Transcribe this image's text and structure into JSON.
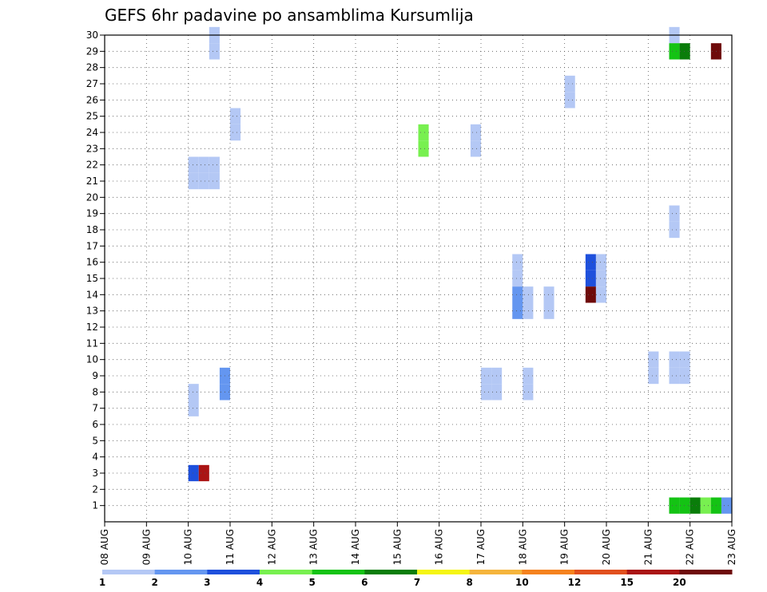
{
  "chart_data": {
    "type": "heatmap",
    "title": "GEFS 6hr padavine po ansamblima Kursumlija",
    "xlabel": "",
    "ylabel": "",
    "x_range": [
      0,
      15
    ],
    "y_range": [
      0,
      30
    ],
    "x_step_days": 0.25,
    "x_tick_labels": [
      "08 AUG",
      "09 AUG",
      "10 AUG",
      "11 AUG",
      "12 AUG",
      "13 AUG",
      "14 AUG",
      "15 AUG",
      "16 AUG",
      "17 AUG",
      "18 AUG",
      "19 AUG",
      "20 AUG",
      "21 AUG",
      "22 AUG",
      "23 AUG"
    ],
    "y_tick_labels": [
      "1",
      "2",
      "3",
      "4",
      "5",
      "6",
      "7",
      "8",
      "9",
      "10",
      "11",
      "12",
      "13",
      "14",
      "15",
      "16",
      "17",
      "18",
      "19",
      "20",
      "21",
      "22",
      "23",
      "24",
      "25",
      "26",
      "27",
      "28",
      "29",
      "30"
    ],
    "grid": true,
    "legend": {
      "placement": "bottom",
      "labels": [
        "1",
        "2",
        "3",
        "4",
        "5",
        "6",
        "7",
        "8",
        "10",
        "12",
        "15",
        "20"
      ],
      "colors": [
        "#b4c8f5",
        "#6496f0",
        "#1e50dc",
        "#78f050",
        "#14c314",
        "#0a7d0a",
        "#f5f514",
        "#f5b43c",
        "#f5821e",
        "#e1501e",
        "#aa1414",
        "#6e0a0a"
      ]
    },
    "cells": [
      {
        "member": 30,
        "t": 2.5,
        "v": 1
      },
      {
        "member": 29,
        "t": 2.5,
        "v": 1
      },
      {
        "member": 30,
        "t": 13.5,
        "v": 1
      },
      {
        "member": 29,
        "t": 13.5,
        "v": 5
      },
      {
        "member": 29,
        "t": 13.75,
        "v": 6
      },
      {
        "member": 29,
        "t": 14.5,
        "v": 20
      },
      {
        "member": 27,
        "t": 11.0,
        "v": 1
      },
      {
        "member": 26,
        "t": 11.0,
        "v": 1
      },
      {
        "member": 25,
        "t": 3.0,
        "v": 1
      },
      {
        "member": 24,
        "t": 3.0,
        "v": 1
      },
      {
        "member": 24,
        "t": 7.5,
        "v": 4
      },
      {
        "member": 23,
        "t": 7.5,
        "v": 4
      },
      {
        "member": 24,
        "t": 8.75,
        "v": 1
      },
      {
        "member": 23,
        "t": 8.75,
        "v": 1
      },
      {
        "member": 22,
        "t": 2.0,
        "v": 1
      },
      {
        "member": 22,
        "t": 2.25,
        "v": 1
      },
      {
        "member": 22,
        "t": 2.5,
        "v": 1
      },
      {
        "member": 21,
        "t": 2.0,
        "v": 1
      },
      {
        "member": 21,
        "t": 2.25,
        "v": 1
      },
      {
        "member": 21,
        "t": 2.5,
        "v": 1
      },
      {
        "member": 19,
        "t": 13.5,
        "v": 1
      },
      {
        "member": 18,
        "t": 13.5,
        "v": 1
      },
      {
        "member": 16,
        "t": 9.75,
        "v": 1
      },
      {
        "member": 15,
        "t": 9.75,
        "v": 1
      },
      {
        "member": 16,
        "t": 11.5,
        "v": 3
      },
      {
        "member": 15,
        "t": 11.5,
        "v": 3
      },
      {
        "member": 16,
        "t": 11.75,
        "v": 1
      },
      {
        "member": 15,
        "t": 11.75,
        "v": 1
      },
      {
        "member": 14,
        "t": 11.5,
        "v": 20
      },
      {
        "member": 14,
        "t": 11.75,
        "v": 1
      },
      {
        "member": 13,
        "t": 9.75,
        "v": 2
      },
      {
        "member": 13,
        "t": 10.0,
        "v": 1
      },
      {
        "member": 14,
        "t": 9.75,
        "v": 2
      },
      {
        "member": 14,
        "t": 10.0,
        "v": 1
      },
      {
        "member": 13,
        "t": 10.5,
        "v": 1
      },
      {
        "member": 14,
        "t": 10.5,
        "v": 1
      },
      {
        "member": 9,
        "t": 13.0,
        "v": 1
      },
      {
        "member": 10,
        "t": 13.0,
        "v": 1
      },
      {
        "member": 9,
        "t": 13.5,
        "v": 1
      },
      {
        "member": 9,
        "t": 13.75,
        "v": 1
      },
      {
        "member": 10,
        "t": 13.5,
        "v": 1
      },
      {
        "member": 10,
        "t": 13.75,
        "v": 1
      },
      {
        "member": 8,
        "t": 2.75,
        "v": 2
      },
      {
        "member": 9,
        "t": 2.75,
        "v": 2
      },
      {
        "member": 8,
        "t": 9.0,
        "v": 1
      },
      {
        "member": 8,
        "t": 9.25,
        "v": 1
      },
      {
        "member": 9,
        "t": 9.0,
        "v": 1
      },
      {
        "member": 9,
        "t": 9.25,
        "v": 1
      },
      {
        "member": 8,
        "t": 10.0,
        "v": 1
      },
      {
        "member": 9,
        "t": 10.0,
        "v": 1
      },
      {
        "member": 7,
        "t": 2.0,
        "v": 1
      },
      {
        "member": 8,
        "t": 2.0,
        "v": 1
      },
      {
        "member": 3,
        "t": 2.0,
        "v": 3
      },
      {
        "member": 3,
        "t": 2.25,
        "v": 15
      },
      {
        "member": 1,
        "t": 13.5,
        "v": 5
      },
      {
        "member": 1,
        "t": 13.75,
        "v": 5
      },
      {
        "member": 1,
        "t": 14.0,
        "v": 6
      },
      {
        "member": 1,
        "t": 14.25,
        "v": 4
      },
      {
        "member": 1,
        "t": 14.5,
        "v": 5
      },
      {
        "member": 1,
        "t": 14.75,
        "v": 2
      }
    ]
  }
}
